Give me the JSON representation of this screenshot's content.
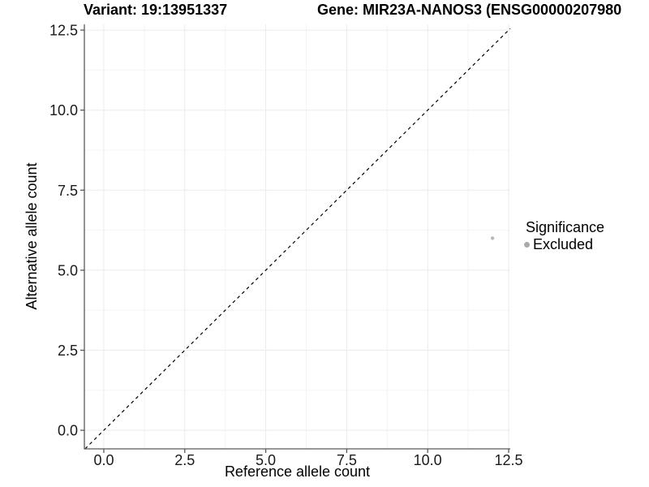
{
  "titles": {
    "variant": "Variant: 19:13951337",
    "gene": "Gene: MIR23A-NANOS3 (ENSG00000207980"
  },
  "legend": {
    "title": "Significance",
    "items": [
      {
        "label": "Excluded",
        "color": "#a9a9a9"
      }
    ]
  },
  "chart_data": {
    "type": "scatter",
    "title_left": "Variant: 19:13951337",
    "title_right": "Gene: MIR23A-NANOS3 (ENSG00000207980",
    "xlabel": "Reference allele count",
    "ylabel": "Alternative allele count",
    "xlim": [
      -0.6,
      12.55
    ],
    "ylim": [
      -0.58,
      12.68
    ],
    "x_ticks": {
      "values": [
        0,
        2.5,
        5,
        7.5,
        10,
        12.5
      ],
      "labels": [
        "0.0",
        "2.5",
        "5.0",
        "7.5",
        "10.0",
        "12.5"
      ]
    },
    "y_ticks": {
      "values": [
        0,
        2.5,
        5,
        7.5,
        10,
        12.5
      ],
      "labels": [
        "0.0",
        "2.5",
        "5.0",
        "7.5",
        "10.0",
        "12.5"
      ]
    },
    "grid": {
      "major": true,
      "minor": true
    },
    "legend_position": "right",
    "series": [
      {
        "name": "Excluded",
        "color": "#b9b9b9",
        "points": [
          {
            "x": 12,
            "y": 6
          }
        ]
      }
    ],
    "reference_line": {
      "type": "identity",
      "slope": 1,
      "intercept": 0,
      "style": "dashed",
      "color": "#000000"
    }
  },
  "style": {
    "grid_major_color": "#ebebeb",
    "grid_minor_color": "#f4f4f4",
    "axis_line_color": "#595959",
    "tick_label_color": "#1a1a1a"
  }
}
